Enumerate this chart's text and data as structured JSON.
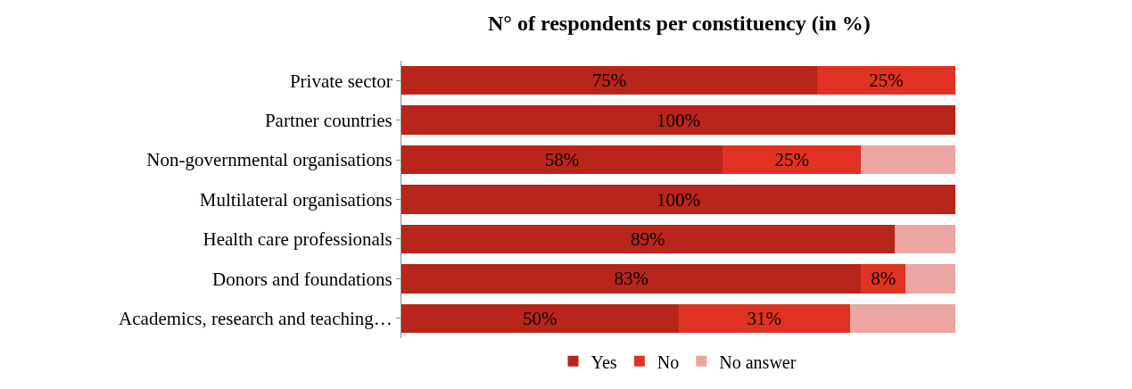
{
  "chart_data": {
    "type": "bar",
    "orientation": "horizontal",
    "stacked": true,
    "title": "N° of respondents per constituency (in %)",
    "categories": [
      "Private sector",
      "Partner countries",
      "Non-governmental organisations",
      "Multilateral organisations",
      "Health care professionals",
      "Donors and foundations",
      "Academics, research and teaching…"
    ],
    "series": [
      {
        "name": "Yes",
        "color": "#b8251a",
        "values": [
          75,
          100,
          58,
          100,
          89,
          83,
          50
        ],
        "value_labels": [
          "75%",
          "100%",
          "58%",
          "100%",
          "89%",
          "83%",
          "50%"
        ]
      },
      {
        "name": "No",
        "color": "#e03222",
        "values": [
          25,
          0,
          25,
          0,
          0,
          8,
          31
        ],
        "value_labels": [
          "25%",
          null,
          "25%",
          null,
          null,
          "8%",
          "31%"
        ]
      },
      {
        "name": "No answer",
        "color": "#eba5a3",
        "values": [
          0,
          0,
          17,
          0,
          11,
          9,
          19
        ],
        "value_labels": [
          null,
          null,
          null,
          null,
          null,
          null,
          null
        ]
      }
    ],
    "xlim": [
      0,
      100
    ],
    "tick_labels": "y",
    "grid": false,
    "legend": "bottom"
  }
}
